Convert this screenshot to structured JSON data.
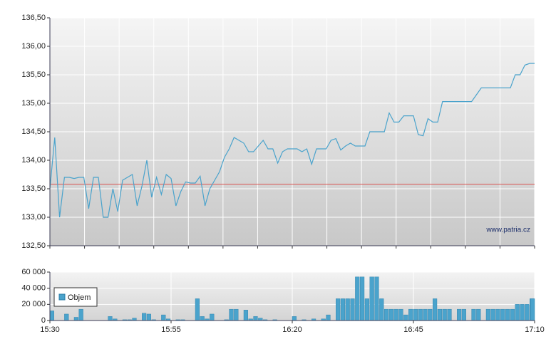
{
  "chart_data": [
    {
      "type": "line",
      "xlim": [
        "15:30",
        "17:10"
      ],
      "ylim": [
        132.5,
        136.5
      ],
      "yticks": [
        {
          "value": 132.5,
          "label": "132,50"
        },
        {
          "value": 133,
          "label": "133,00"
        },
        {
          "value": 133.5,
          "label": "133,50"
        },
        {
          "value": 134,
          "label": "134,00"
        },
        {
          "value": 134.5,
          "label": "134,50"
        },
        {
          "value": 135,
          "label": "135,00"
        },
        {
          "value": 135.5,
          "label": "135,50"
        },
        {
          "value": 136,
          "label": "136,00"
        },
        {
          "value": 136.5,
          "label": "136,50"
        }
      ],
      "grid": true,
      "reference_line": 133.58,
      "reference_color": "#d9534f",
      "annotation": "www.patria.cz",
      "x": [
        "15:30",
        "15:31",
        "15:32",
        "15:33",
        "15:34",
        "15:35",
        "15:36",
        "15:37",
        "15:38",
        "15:39",
        "15:40",
        "15:41",
        "15:42",
        "15:43",
        "15:44",
        "15:45",
        "15:46",
        "15:47",
        "15:48",
        "15:49",
        "15:50",
        "15:51",
        "15:52",
        "15:53",
        "15:54",
        "15:55",
        "15:56",
        "15:57",
        "15:58",
        "15:59",
        "16:00",
        "16:01",
        "16:02",
        "16:03",
        "16:04",
        "16:05",
        "16:06",
        "16:07",
        "16:08",
        "16:09",
        "16:10",
        "16:11",
        "16:12",
        "16:13",
        "16:14",
        "16:15",
        "16:16",
        "16:17",
        "16:18",
        "16:19",
        "16:20",
        "16:21",
        "16:22",
        "16:23",
        "16:24",
        "16:25",
        "16:26",
        "16:27",
        "16:28",
        "16:29",
        "16:30",
        "16:31",
        "16:32",
        "16:33",
        "16:34",
        "16:35",
        "16:36",
        "16:37",
        "16:38",
        "16:39",
        "16:40",
        "16:41",
        "16:42",
        "16:43",
        "16:44",
        "16:45",
        "16:46",
        "16:47",
        "16:48",
        "16:49",
        "16:50",
        "16:51",
        "16:52",
        "16:53",
        "16:54",
        "16:55",
        "16:56",
        "16:57",
        "16:58",
        "16:59",
        "17:00",
        "17:01",
        "17:02",
        "17:03",
        "17:04",
        "17:05",
        "17:06",
        "17:07",
        "17:08",
        "17:09",
        "17:10"
      ],
      "series": [
        {
          "color": "#4aa3cc",
          "values": [
            133.5,
            134.4,
            133.0,
            133.7,
            133.7,
            133.68,
            133.7,
            133.7,
            133.15,
            133.7,
            133.7,
            133.0,
            133.0,
            133.5,
            133.1,
            133.65,
            133.7,
            133.75,
            133.2,
            133.55,
            134.0,
            133.35,
            133.7,
            133.4,
            133.75,
            133.68,
            133.2,
            133.45,
            133.62,
            133.6,
            133.6,
            133.72,
            133.2,
            133.5,
            133.65,
            133.8,
            134.05,
            134.2,
            134.4,
            134.35,
            134.3,
            134.15,
            134.15,
            134.25,
            134.35,
            134.2,
            134.2,
            133.95,
            134.15,
            134.2,
            134.2,
            134.2,
            134.15,
            134.2,
            133.93,
            134.2,
            134.2,
            134.2,
            134.35,
            134.38,
            134.18,
            134.25,
            134.3,
            134.25,
            134.25,
            134.25,
            134.5,
            134.5,
            134.5,
            134.5,
            134.83,
            134.67,
            134.67,
            134.78,
            134.78,
            134.78,
            134.45,
            134.43,
            134.73,
            134.67,
            134.67,
            135.03,
            135.03,
            135.03,
            135.03,
            135.03,
            135.03,
            135.03,
            135.15,
            135.27,
            135.27,
            135.27,
            135.27,
            135.27,
            135.27,
            135.27,
            135.5,
            135.5,
            135.67,
            135.7,
            135.7
          ]
        }
      ]
    },
    {
      "type": "bar",
      "xlim": [
        "15:30",
        "17:10"
      ],
      "xticks": [
        "15:30",
        "15:55",
        "16:20",
        "16:45",
        "17:10"
      ],
      "ylim": [
        0,
        60000
      ],
      "yticks": [
        0,
        {
          "value": 20000,
          "label": "20 000"
        },
        {
          "value": 40000,
          "label": "40 000"
        },
        {
          "value": 60000,
          "label": "60 000"
        }
      ],
      "grid": true,
      "legend": "lower-left",
      "x": [
        "15:30",
        "15:31",
        "15:32",
        "15:33",
        "15:34",
        "15:35",
        "15:36",
        "15:37",
        "15:38",
        "15:39",
        "15:40",
        "15:41",
        "15:42",
        "15:43",
        "15:44",
        "15:45",
        "15:46",
        "15:47",
        "15:48",
        "15:49",
        "15:50",
        "15:51",
        "15:52",
        "15:53",
        "15:54",
        "15:55",
        "15:56",
        "15:57",
        "15:58",
        "15:59",
        "16:00",
        "16:01",
        "16:02",
        "16:03",
        "16:04",
        "16:05",
        "16:06",
        "16:07",
        "16:08",
        "16:09",
        "16:10",
        "16:11",
        "16:12",
        "16:13",
        "16:14",
        "16:15",
        "16:16",
        "16:17",
        "16:18",
        "16:19",
        "16:20",
        "16:21",
        "16:22",
        "16:23",
        "16:24",
        "16:25",
        "16:26",
        "16:27",
        "16:28",
        "16:29",
        "16:30",
        "16:31",
        "16:32",
        "16:33",
        "16:34",
        "16:35",
        "16:36",
        "16:37",
        "16:38",
        "16:39",
        "16:40",
        "16:41",
        "16:42",
        "16:43",
        "16:44",
        "16:45",
        "16:46",
        "16:47",
        "16:48",
        "16:49",
        "16:50",
        "16:51",
        "16:52",
        "16:53",
        "16:54",
        "16:55",
        "16:56",
        "16:57",
        "16:58",
        "16:59",
        "17:00",
        "17:01",
        "17:02",
        "17:03",
        "17:04",
        "17:05",
        "17:06",
        "17:07",
        "17:08",
        "17:09",
        "17:10"
      ],
      "series": [
        {
          "name": "Objem",
          "color": "#4aa3cc",
          "values": [
            12000,
            0,
            0,
            8000,
            0,
            4000,
            14000,
            0,
            0,
            0,
            0,
            0,
            5000,
            2000,
            0,
            1000,
            1000,
            3000,
            0,
            9000,
            8000,
            1000,
            0,
            7000,
            2000,
            0,
            1000,
            1000,
            0,
            0,
            27000,
            5000,
            2000,
            8000,
            0,
            0,
            1000,
            14000,
            14000,
            0,
            13000,
            2000,
            5000,
            3000,
            1000,
            0,
            1000,
            0,
            0,
            0,
            5000,
            0,
            1000,
            0,
            2000,
            0,
            2000,
            7000,
            0,
            27000,
            27000,
            27000,
            27000,
            54000,
            54000,
            27000,
            54000,
            54000,
            27000,
            14000,
            14000,
            14000,
            14000,
            7000,
            14000,
            14000,
            14000,
            14000,
            14000,
            27000,
            14000,
            14000,
            14000,
            0,
            14000,
            14000,
            0,
            14000,
            14000,
            0,
            14000,
            14000,
            14000,
            14000,
            14000,
            14000,
            20000,
            20000,
            20000,
            27000,
            27000
          ]
        }
      ]
    }
  ]
}
